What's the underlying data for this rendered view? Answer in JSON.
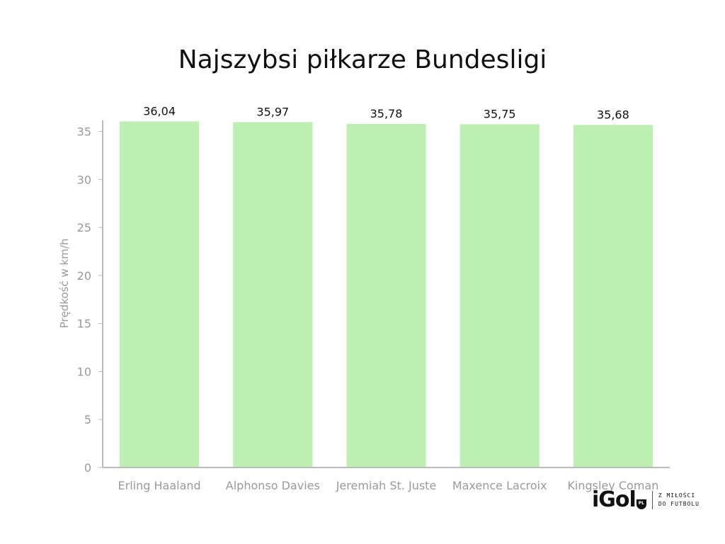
{
  "chart_data": {
    "type": "bar",
    "title": "Najszybsi piłkarze Bundesligi",
    "xlabel": "",
    "ylabel": "Prędkość w km/h",
    "categories": [
      "Erling Haaland",
      "Alphonso Davies",
      "Jeremiah St. Juste",
      "Maxence Lacroix",
      "Kingsley Coman"
    ],
    "values": [
      36.04,
      35.97,
      35.78,
      35.75,
      35.68
    ],
    "value_labels": [
      "36,04",
      "35,97",
      "35,78",
      "35,75",
      "35,68"
    ],
    "ylim": [
      0,
      36
    ],
    "yticks": [
      0,
      5,
      10,
      15,
      20,
      25,
      30,
      35
    ],
    "grid": false,
    "legend": "none",
    "bar_color": "#bdeeb2",
    "axis_color": "#bbbbbb"
  },
  "brand": {
    "logo_text": "iGol",
    "logo_badge": "PL",
    "tagline_line1": "Z MIŁOŚCI",
    "tagline_line2": "DO FUTBOLU"
  }
}
